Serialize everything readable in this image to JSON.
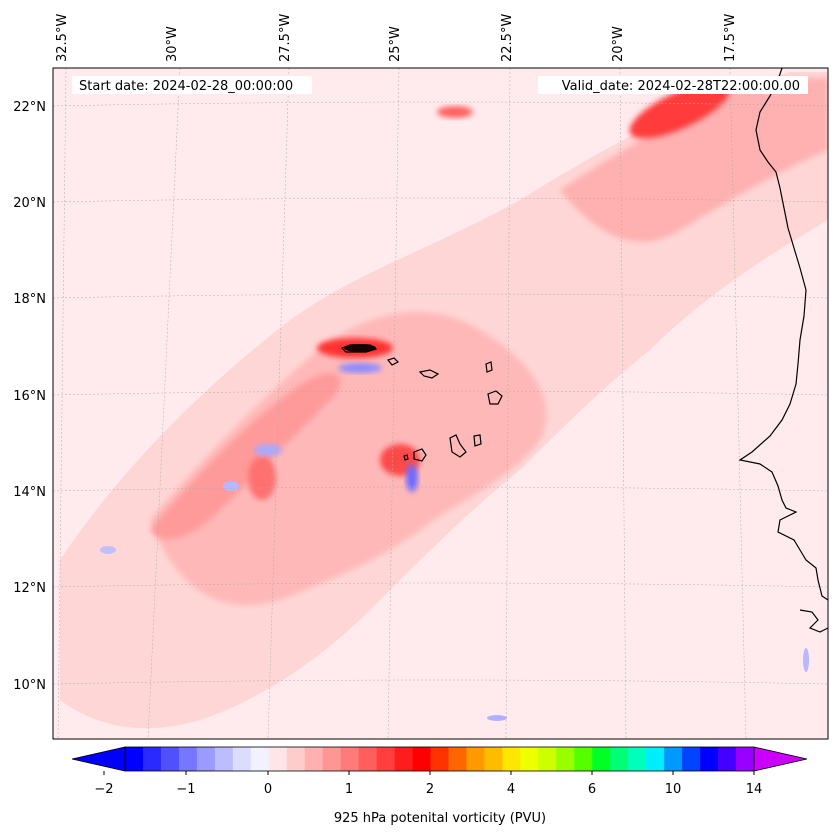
{
  "map": {
    "start_date": "Start date: 2024-02-28_00:00:00",
    "valid_date": "Valid_date: 2024-02-28T22:00:00.00",
    "lon_labels": [
      "32.5°W",
      "30°W",
      "27.5°W",
      "25°W",
      "22.5°W",
      "20°W",
      "17.5°W"
    ],
    "lat_labels": [
      "22°N",
      "20°N",
      "18°N",
      "16°N",
      "14°N",
      "12°N",
      "10°N"
    ],
    "background_color": "#ffebee",
    "positive_color": "#ff3030",
    "negative_color": "#3b3bff"
  },
  "colorbar": {
    "label": "925 hPa potenital vorticity (PVU)",
    "tick_labels": [
      "−2",
      "−1",
      "0",
      "1",
      "2",
      "4",
      "6",
      "10",
      "14"
    ],
    "colors": [
      "#0000ff",
      "#2a2aff",
      "#5050ff",
      "#7676ff",
      "#9a9aff",
      "#bcbcff",
      "#dcdcff",
      "#f2f2ff",
      "#ffe6e6",
      "#ffcccc",
      "#ffb0b0",
      "#ff9696",
      "#ff7a7a",
      "#ff5e5e",
      "#ff3e3e",
      "#ff1c1c",
      "#ff0000",
      "#ff3300",
      "#ff6600",
      "#ff9900",
      "#ffbb00",
      "#ffe600",
      "#eeff00",
      "#ccff00",
      "#99ff00",
      "#55ff00",
      "#00ff22",
      "#00ff77",
      "#00ffbb",
      "#00eeff",
      "#0099ff",
      "#0044ff",
      "#0000ff",
      "#4400ff",
      "#9900ff"
    ]
  }
}
